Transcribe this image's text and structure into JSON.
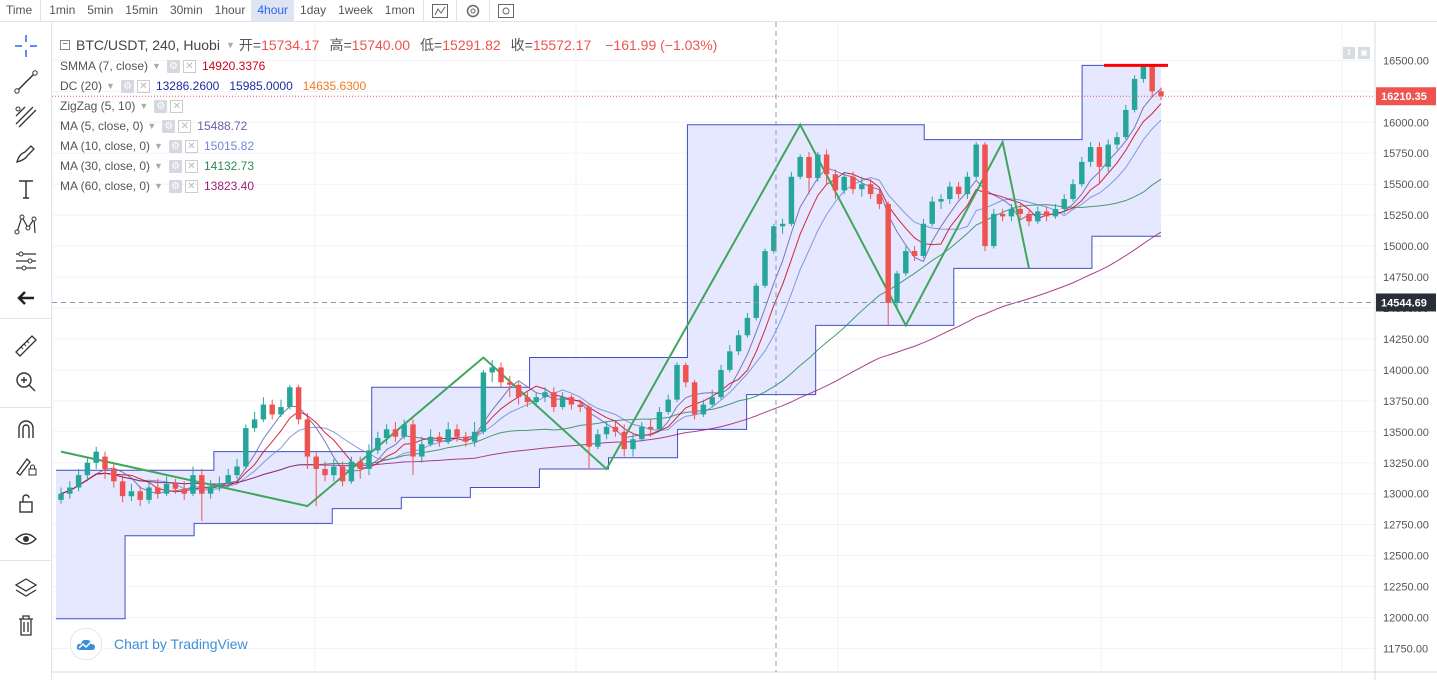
{
  "toolbar": {
    "items": [
      "Time",
      "1min",
      "5min",
      "15min",
      "30min",
      "1hour",
      "4hour",
      "1day",
      "1week",
      "1mon"
    ],
    "active_index": 6,
    "icons": [
      "indicator-icon",
      "settings-icon",
      "screenshot-icon"
    ]
  },
  "sidebar": {
    "tools": [
      "crosshair-icon",
      "trendline-icon",
      "fib-icon",
      "brush-icon",
      "text-icon",
      "pattern-icon",
      "measure-icon",
      "back-arrow-icon",
      "ruler-icon",
      "zoom-in-icon",
      "magnet-icon",
      "lock-draw-icon",
      "lock-icon",
      "eye-icon",
      "layers-icon",
      "trash-icon"
    ]
  },
  "legend": {
    "symbol": "BTC/USDT, 240, Huobi",
    "open_label": "开=",
    "open": "15734.17",
    "high_label": "高=",
    "high": "15740.00",
    "low_label": "低=",
    "low": "15291.82",
    "close_label": "收=",
    "close": "15572.17",
    "change": "−161.99 (−1.03%)",
    "indicators": [
      {
        "name": "SMMA (7, close)",
        "values": [
          "14920.3376"
        ],
        "colors": [
          "#d0021b"
        ]
      },
      {
        "name": "DC (20)",
        "values": [
          "13286.2600",
          "15985.0000",
          "14635.6300"
        ],
        "colors": [
          "#1e2b9c",
          "#1e2b9c",
          "#ef7b20"
        ]
      },
      {
        "name": "ZigZag (5, 10)",
        "values": [],
        "colors": []
      },
      {
        "name": "MA (5, close, 0)",
        "values": [
          "15488.72"
        ],
        "colors": [
          "#6c5fa8"
        ]
      },
      {
        "name": "MA (10, close, 0)",
        "values": [
          "15015.82"
        ],
        "colors": [
          "#6e8bd6"
        ]
      },
      {
        "name": "MA (30, close, 0)",
        "values": [
          "14132.73"
        ],
        "colors": [
          "#2e8b57"
        ]
      },
      {
        "name": "MA (60, close, 0)",
        "values": [
          "13823.40"
        ],
        "colors": [
          "#9c1f7a"
        ]
      }
    ]
  },
  "logo": {
    "text": "Chart by TradingView"
  },
  "chart_data": {
    "type": "candlestick",
    "y_ticks": [
      11750,
      12000,
      12250,
      12500,
      12750,
      13000,
      13250,
      13500,
      13750,
      14000,
      14250,
      14500,
      14750,
      15000,
      15250,
      15500,
      15750,
      16000,
      16250,
      16500
    ],
    "ylim": [
      11560,
      16810
    ],
    "last_price_label": "16210.35",
    "crosshair_price_label": "14544.69",
    "last_price": 16210.35,
    "crosshair_price": 14544.69,
    "colors": {
      "up": "#26a69a",
      "down": "#ef5350",
      "zigzag": "#3fa65a",
      "channel_line": "#3f4fc7",
      "channel_fill": "#e2e4ff",
      "price_line": "#e35d5d",
      "crosshair": "#8a96b0"
    },
    "zigzag_pivots": [
      13340,
      12900,
      14100,
      13200,
      15980,
      14360,
      15840,
      14820
    ],
    "channel_upper_points": [
      13190,
      13190,
      13340,
      13340,
      13860,
      13860,
      14100,
      14100,
      15980,
      15980,
      15980,
      15860,
      15860,
      16460
    ],
    "channel_lower_points": [
      11990,
      12660,
      12760,
      12760,
      12880,
      12970,
      13050,
      13200,
      13290,
      13520,
      13800,
      14360,
      14360,
      14820,
      14820,
      15080
    ],
    "highlight_level": 16460,
    "candles": [
      [
        12950,
        13000,
        12920,
        13050
      ],
      [
        13000,
        13050,
        12960,
        13100
      ],
      [
        13050,
        13150,
        13020,
        13200
      ],
      [
        13150,
        13250,
        13100,
        13300
      ],
      [
        13250,
        13340,
        13200,
        13380
      ],
      [
        13300,
        13200,
        13120,
        13340
      ],
      [
        13200,
        13100,
        13050,
        13240
      ],
      [
        13100,
        12980,
        12930,
        13150
      ],
      [
        12980,
        13020,
        12940,
        13080
      ],
      [
        13020,
        12950,
        12900,
        13060
      ],
      [
        12950,
        13050,
        12920,
        13100
      ],
      [
        13050,
        13000,
        12960,
        13120
      ],
      [
        13000,
        13080,
        12980,
        13140
      ],
      [
        13080,
        13040,
        13000,
        13120
      ],
      [
        13040,
        13000,
        12950,
        13100
      ],
      [
        13000,
        13150,
        12980,
        13220
      ],
      [
        13150,
        13000,
        12780,
        13200
      ],
      [
        13000,
        13060,
        12960,
        13110
      ],
      [
        13060,
        13080,
        13020,
        13140
      ],
      [
        13080,
        13150,
        13050,
        13200
      ],
      [
        13150,
        13220,
        13120,
        13280
      ],
      [
        13220,
        13530,
        13200,
        13560
      ],
      [
        13530,
        13600,
        13500,
        13660
      ],
      [
        13600,
        13720,
        13580,
        13780
      ],
      [
        13720,
        13640,
        13600,
        13760
      ],
      [
        13640,
        13700,
        13620,
        13760
      ],
      [
        13700,
        13860,
        13680,
        13880
      ],
      [
        13860,
        13600,
        13560,
        13880
      ],
      [
        13600,
        13300,
        13200,
        13650
      ],
      [
        13300,
        13200,
        12900,
        13340
      ],
      [
        13200,
        13150,
        13100,
        13260
      ],
      [
        13150,
        13220,
        13100,
        13280
      ],
      [
        13220,
        13100,
        13060,
        13260
      ],
      [
        13100,
        13260,
        13080,
        13300
      ],
      [
        13260,
        13200,
        13120,
        13300
      ],
      [
        13200,
        13350,
        13150,
        13400
      ],
      [
        13350,
        13450,
        13320,
        13500
      ],
      [
        13450,
        13520,
        13400,
        13560
      ],
      [
        13520,
        13460,
        13420,
        13580
      ],
      [
        13460,
        13560,
        13440,
        13600
      ],
      [
        13560,
        13300,
        13150,
        13600
      ],
      [
        13300,
        13400,
        13250,
        13460
      ],
      [
        13400,
        13460,
        13380,
        13520
      ],
      [
        13460,
        13420,
        13380,
        13500
      ],
      [
        13420,
        13520,
        13400,
        13580
      ],
      [
        13520,
        13460,
        13420,
        13560
      ],
      [
        13460,
        13420,
        13380,
        13500
      ],
      [
        13420,
        13500,
        13380,
        13580
      ],
      [
        13500,
        13980,
        13480,
        14000
      ],
      [
        13980,
        14020,
        13900,
        14080
      ],
      [
        14020,
        13900,
        13860,
        14060
      ],
      [
        13900,
        13880,
        13780,
        13950
      ],
      [
        13880,
        13780,
        13720,
        13900
      ],
      [
        13780,
        13740,
        13700,
        13820
      ],
      [
        13740,
        13780,
        13700,
        13820
      ],
      [
        13780,
        13820,
        13740,
        13860
      ],
      [
        13820,
        13700,
        13660,
        13860
      ],
      [
        13700,
        13780,
        13680,
        13820
      ],
      [
        13780,
        13720,
        13680,
        13800
      ],
      [
        13720,
        13700,
        13660,
        13760
      ],
      [
        13700,
        13380,
        13200,
        13720
      ],
      [
        13380,
        13480,
        13360,
        13520
      ],
      [
        13480,
        13540,
        13440,
        13580
      ],
      [
        13540,
        13500,
        13460,
        13580
      ],
      [
        13500,
        13360,
        13300,
        13560
      ],
      [
        13360,
        13440,
        13300,
        13480
      ],
      [
        13440,
        13540,
        13420,
        13580
      ],
      [
        13540,
        13520,
        13460,
        13600
      ],
      [
        13520,
        13660,
        13500,
        13700
      ],
      [
        13660,
        13760,
        13640,
        13800
      ],
      [
        13760,
        14040,
        13740,
        14060
      ],
      [
        14040,
        13900,
        13860,
        14060
      ],
      [
        13900,
        13640,
        13600,
        13920
      ],
      [
        13640,
        13720,
        13620,
        13760
      ],
      [
        13720,
        13780,
        13700,
        13840
      ],
      [
        13780,
        14000,
        13760,
        14040
      ],
      [
        14000,
        14150,
        13980,
        14200
      ],
      [
        14150,
        14280,
        14120,
        14320
      ],
      [
        14280,
        14420,
        14260,
        14460
      ],
      [
        14420,
        14680,
        14400,
        14700
      ],
      [
        14680,
        14960,
        14660,
        14980
      ],
      [
        14960,
        15160,
        14940,
        15180
      ],
      [
        15160,
        15180,
        15100,
        15220
      ],
      [
        15180,
        15560,
        15160,
        15600
      ],
      [
        15560,
        15720,
        15540,
        15740
      ],
      [
        15720,
        15550,
        15420,
        15760
      ],
      [
        15550,
        15740,
        15520,
        15760
      ],
      [
        15740,
        15580,
        15500,
        15780
      ],
      [
        15580,
        15450,
        15380,
        15620
      ],
      [
        15450,
        15560,
        15420,
        15600
      ],
      [
        15560,
        15460,
        15420,
        15600
      ],
      [
        15460,
        15500,
        15400,
        15560
      ],
      [
        15500,
        15420,
        15380,
        15540
      ],
      [
        15420,
        15340,
        15300,
        15460
      ],
      [
        15340,
        14540,
        14360,
        15360
      ],
      [
        14540,
        14780,
        14500,
        14800
      ],
      [
        14780,
        14960,
        14760,
        15000
      ],
      [
        14960,
        14920,
        14880,
        15000
      ],
      [
        14920,
        15180,
        14900,
        15220
      ],
      [
        15180,
        15360,
        15160,
        15400
      ],
      [
        15360,
        15380,
        15300,
        15420
      ],
      [
        15380,
        15480,
        15340,
        15520
      ],
      [
        15480,
        15420,
        15380,
        15520
      ],
      [
        15420,
        15560,
        15380,
        15600
      ],
      [
        15560,
        15820,
        15540,
        15840
      ],
      [
        15820,
        15000,
        14960,
        15840
      ],
      [
        15000,
        15260,
        14980,
        15300
      ],
      [
        15260,
        15240,
        15200,
        15300
      ],
      [
        15240,
        15300,
        15200,
        15340
      ],
      [
        15300,
        15260,
        15220,
        15340
      ],
      [
        15260,
        15200,
        15160,
        15300
      ],
      [
        15200,
        15280,
        15180,
        15320
      ],
      [
        15280,
        15240,
        15200,
        15320
      ],
      [
        15240,
        15300,
        15220,
        15340
      ],
      [
        15300,
        15380,
        15260,
        15420
      ],
      [
        15380,
        15500,
        15360,
        15540
      ],
      [
        15500,
        15680,
        15480,
        15720
      ],
      [
        15680,
        15800,
        15640,
        15840
      ],
      [
        15800,
        15640,
        15500,
        15840
      ],
      [
        15640,
        15820,
        15600,
        15860
      ],
      [
        15820,
        15880,
        15780,
        15920
      ],
      [
        15880,
        16100,
        15860,
        16140
      ],
      [
        16100,
        16350,
        16080,
        16380
      ],
      [
        16350,
        16450,
        16320,
        16470
      ],
      [
        16450,
        16250,
        16200,
        16460
      ],
      [
        16250,
        16210,
        16180,
        16280
      ]
    ]
  }
}
